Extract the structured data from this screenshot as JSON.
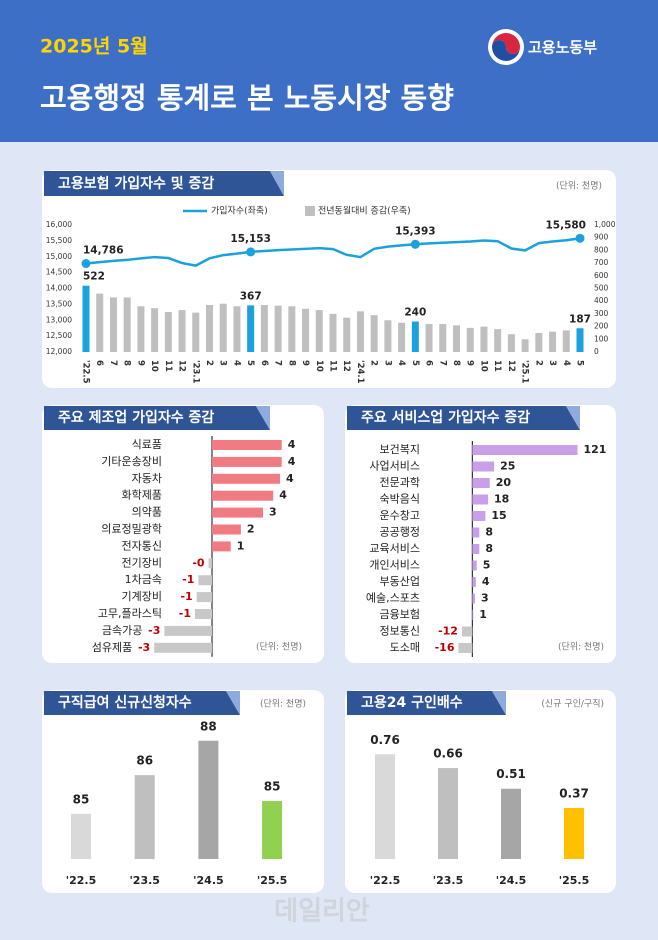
{
  "header": {
    "date": "2025년 5월",
    "title": "고용행정 통계로 본 노동시장 동향",
    "ministry": "고용노동부"
  },
  "watermark": "데일리안",
  "chart_data": [
    {
      "type": "combo",
      "title": "고용보험 가입자수 및 증감",
      "unit": "(단위: 천명)",
      "categories": [
        "'22.5",
        "6",
        "7",
        "8",
        "9",
        "10",
        "11",
        "12",
        "'23.1",
        "2",
        "3",
        "4",
        "5",
        "6",
        "7",
        "8",
        "9",
        "10",
        "11",
        "12",
        "'24.1",
        "2",
        "3",
        "4",
        "5",
        "6",
        "7",
        "8",
        "9",
        "10",
        "11",
        "12",
        "'25.1",
        "2",
        "3",
        "4",
        "5"
      ],
      "series": [
        {
          "name": "전년동월대비 증감(우축)",
          "type": "bar",
          "axis": "y2",
          "color": "#bfbfbf",
          "colors": [
            "#1ba1dc",
            "#bfbfbf",
            "#bfbfbf",
            "#bfbfbf",
            "#bfbfbf",
            "#bfbfbf",
            "#bfbfbf",
            "#bfbfbf",
            "#bfbfbf",
            "#bfbfbf",
            "#bfbfbf",
            "#bfbfbf",
            "#1ba1dc",
            "#bfbfbf",
            "#bfbfbf",
            "#bfbfbf",
            "#bfbfbf",
            "#bfbfbf",
            "#bfbfbf",
            "#bfbfbf",
            "#bfbfbf",
            "#bfbfbf",
            "#bfbfbf",
            "#bfbfbf",
            "#1ba1dc",
            "#bfbfbf",
            "#bfbfbf",
            "#bfbfbf",
            "#bfbfbf",
            "#bfbfbf",
            "#bfbfbf",
            "#bfbfbf",
            "#bfbfbf",
            "#bfbfbf",
            "#bfbfbf",
            "#bfbfbf",
            "#1ba1dc"
          ],
          "values": [
            522,
            460,
            430,
            430,
            360,
            345,
            315,
            330,
            310,
            370,
            380,
            360,
            367,
            370,
            365,
            360,
            340,
            330,
            300,
            270,
            320,
            290,
            250,
            230,
            240,
            220,
            220,
            210,
            190,
            200,
            180,
            140,
            100,
            150,
            160,
            170,
            187
          ],
          "value_labels": [
            "522",
            null,
            null,
            null,
            null,
            null,
            null,
            null,
            null,
            null,
            null,
            null,
            "367",
            null,
            null,
            null,
            null,
            null,
            null,
            null,
            null,
            null,
            null,
            null,
            "240",
            null,
            null,
            null,
            null,
            null,
            null,
            null,
            null,
            null,
            null,
            null,
            "187"
          ]
        },
        {
          "name": "가입자수(좌축)",
          "type": "line",
          "color": "#1ba1dc",
          "values": [
            14786,
            14830,
            14870,
            14900,
            14950,
            14990,
            14960,
            14800,
            14720,
            14950,
            15050,
            15100,
            15153,
            15180,
            15210,
            15230,
            15250,
            15270,
            15240,
            15060,
            14990,
            15250,
            15320,
            15360,
            15393,
            15420,
            15440,
            15460,
            15480,
            15510,
            15490,
            15260,
            15200,
            15430,
            15480,
            15520,
            15580
          ],
          "value_labels": [
            "14,786",
            null,
            null,
            null,
            null,
            null,
            null,
            null,
            null,
            null,
            null,
            null,
            "15,153",
            null,
            null,
            null,
            null,
            null,
            null,
            null,
            null,
            null,
            null,
            null,
            "15,393",
            null,
            null,
            null,
            null,
            null,
            null,
            null,
            null,
            null,
            null,
            null,
            "15,580"
          ]
        }
      ],
      "ylim": [
        12000,
        16000
      ],
      "yticks": [
        {
          "value": 12000,
          "label": "12,000"
        },
        {
          "value": 12500,
          "label": "12,500"
        },
        {
          "value": 13000,
          "label": "13,000"
        },
        {
          "value": 13500,
          "label": "13,500"
        },
        {
          "value": 14000,
          "label": "14,000"
        },
        {
          "value": 14500,
          "label": "14,500"
        },
        {
          "value": 15000,
          "label": "15,000"
        },
        {
          "value": 15500,
          "label": "15,500"
        },
        {
          "value": 16000,
          "label": "16,000"
        }
      ],
      "y2lim": [
        0,
        1000
      ],
      "y2ticks": [
        0,
        100,
        200,
        300,
        400,
        500,
        600,
        700,
        800,
        900,
        {
          "value": 1000,
          "label": "1,000"
        }
      ]
    },
    {
      "type": "hbar",
      "title": "주요 제조업 가입자수 증감",
      "unit": "(단위: 천명)",
      "categories": [
        "식료품",
        "기타운송장비",
        "자동차",
        "화학제품",
        "의약품",
        "의료정밀광학",
        "전자통신",
        "전기장비",
        "1차금속",
        "기계장비",
        "고무,플라스틱",
        "금속가공",
        "섬유제품"
      ],
      "values": [
        4.1,
        4.1,
        4.0,
        3.6,
        3.0,
        1.7,
        1.1,
        -0.2,
        -0.8,
        -0.9,
        -1.0,
        -2.8,
        -3.4
      ],
      "value_labels": [
        "4",
        "4",
        "4",
        "4",
        "3",
        "2",
        "1",
        "-0",
        "-1",
        "-1",
        "-1",
        "-3",
        "-3"
      ],
      "color": "#f07b82",
      "negative_color": "#c8c8c8",
      "negative_label_color": "#c00000",
      "xlim": [
        -4,
        6
      ]
    },
    {
      "type": "hbar",
      "title": "주요 서비스업 가입자수 증감",
      "unit": "(단위: 천명)",
      "categories": [
        "보건복지",
        "사업서비스",
        "전문과학",
        "숙박음식",
        "운수창고",
        "공공행정",
        "교육서비스",
        "개인서비스",
        "부동산업",
        "예술,스포츠",
        "금융보험",
        "정보통신",
        "도소매"
      ],
      "values": [
        121,
        25,
        20,
        18,
        15,
        8,
        8,
        5,
        4,
        3,
        1,
        -12,
        -16
      ],
      "color": "#c9a0e8",
      "negative_color": "#c8c8c8",
      "negative_label_color": "#c00000",
      "xlim": [
        -20,
        140
      ]
    },
    {
      "type": "bar",
      "title": "구직급여 신규신청자수",
      "unit": "(단위: 천명)",
      "categories": [
        "'22.5",
        "'23.5",
        "'24.5",
        "'25.5"
      ],
      "values": [
        84.6,
        86.4,
        88.0,
        85.2
      ],
      "value_labels": [
        "85",
        "86",
        "88",
        "85"
      ],
      "colors": [
        "#d9d9d9",
        "#bfbfbf",
        "#a6a6a6",
        "#92d050"
      ],
      "ylim": [
        82.5,
        88.5
      ]
    },
    {
      "type": "bar",
      "title": "고용24 구인배수",
      "unit": "(신규 구인/구직)",
      "categories": [
        "'22.5",
        "'23.5",
        "'24.5",
        "'25.5"
      ],
      "values": [
        0.76,
        0.66,
        0.51,
        0.37
      ],
      "colors": [
        "#d9d9d9",
        "#bfbfbf",
        "#a6a6a6",
        "#ffc000"
      ],
      "ylim": [
        0,
        0.9
      ]
    }
  ]
}
